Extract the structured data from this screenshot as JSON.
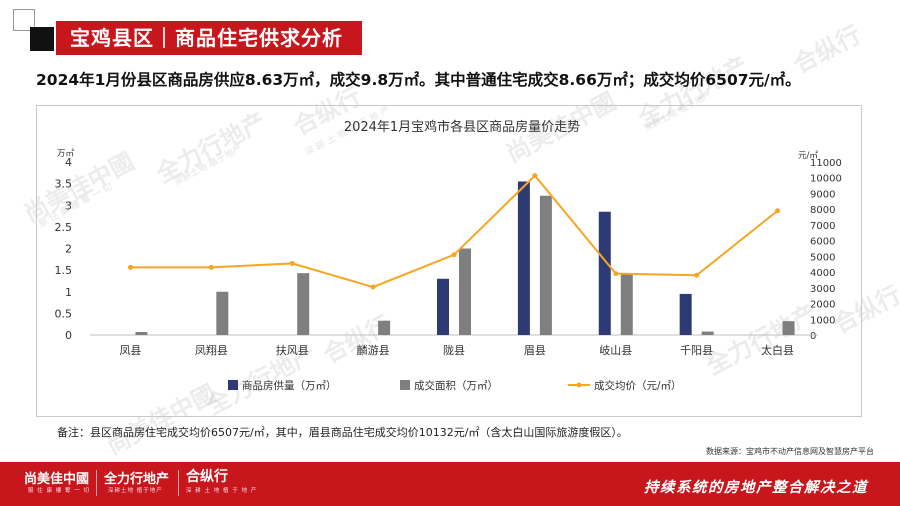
{
  "header": {
    "title": "宝鸡县区｜商品住宅供求分析"
  },
  "summary": "2024年1月份县区商品房供应8.63万㎡，成交9.8万㎡。其中普通住宅成交8.66万㎡；成交均价6507元/㎡。",
  "watermarks": {
    "brand_a": "尚美佳中國",
    "brand_a_sub": "服 住 康 樓 奪 一 切",
    "brand_b": "全力行地产",
    "brand_b_sub": "深耕土地 植于地产",
    "brand_c": "合纵行",
    "brand_c_sub": "深 耕 土 地 植 于 地 产"
  },
  "chart_data": {
    "type": "bar",
    "title": "2024年1月宝鸡市各县区商品房量价走势",
    "categories": [
      "凤县",
      "凤翔县",
      "扶风县",
      "麟游县",
      "陇县",
      "眉县",
      "岐山县",
      "千阳县",
      "太白县"
    ],
    "series": [
      {
        "name": "商品房供量（万㎡）",
        "type": "bar",
        "axis": "left",
        "color": "#2e3a74",
        "values": [
          0,
          0,
          0,
          0,
          1.3,
          3.55,
          2.85,
          0.95,
          0
        ]
      },
      {
        "name": "成交面积（万㎡）",
        "type": "bar",
        "axis": "left",
        "color": "#7f7f7f",
        "values": [
          0.07,
          1.0,
          1.43,
          0.33,
          2.0,
          3.22,
          1.4,
          0.08,
          0.32
        ]
      },
      {
        "name": "成交均价（元/㎡）",
        "type": "line",
        "axis": "right",
        "color": "#f5a623",
        "values": [
          4300,
          4300,
          4550,
          3050,
          5100,
          10132,
          3900,
          3800,
          7900
        ]
      }
    ],
    "y_left": {
      "unit": "万㎡",
      "min": 0,
      "max": 4,
      "ticks": [
        "0",
        "0.5",
        "1",
        "1.5",
        "2",
        "2.5",
        "3",
        "3.5",
        "4"
      ]
    },
    "y_right": {
      "unit": "元/㎡",
      "min": 0,
      "max": 11000,
      "ticks": [
        "0",
        "1000",
        "2000",
        "3000",
        "4000",
        "5000",
        "6000",
        "7000",
        "8000",
        "9000",
        "10000",
        "11000"
      ]
    },
    "legend_position": "bottom",
    "grid": false
  },
  "note": "备注：县区商品房住宅成交均价6507元/㎡，其中，眉县商品住宅成交均价10132元/㎡（含太白山国际旅游度假区）。",
  "source": "数据来源：宝鸡市不动产信息网及智慧房产平台",
  "footer": {
    "logo_a": "尚美佳中國",
    "logo_a_sub": "服 住 康 樓 奪 一 切",
    "logo_b": "全力行地产",
    "logo_b_sub": "深耕土地 植于地产",
    "logo_c": "合纵行",
    "logo_c_sub": "深 耕 土 地 植 于 地 产",
    "slogan": "持续系统的房地产整合解决之道"
  }
}
